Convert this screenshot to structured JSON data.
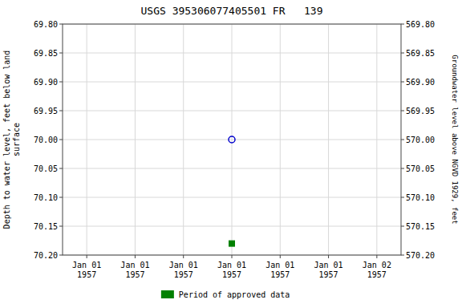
{
  "chart_data": {
    "type": "scatter",
    "title": "USGS 395306077405501 FR   139",
    "y_label": "Depth to water level, feet below land\nsurface",
    "y2_label": "Groundwater level above NGVD 1929, feet",
    "categories": [
      "Jan 01\n1957",
      "Jan 01\n1957",
      "Jan 01\n1957",
      "Jan 01\n1957",
      "Jan 01\n1957",
      "Jan 01\n1957",
      "Jan 02\n1957"
    ],
    "series": [
      {
        "color": "#0000cc",
        "marker": "circle-open",
        "line_style": "none",
        "values": [
          null,
          null,
          null,
          70.0,
          null,
          null,
          null
        ]
      },
      {
        "name": "Period of approved data",
        "color": "#008000",
        "marker": "square",
        "line_style": "none",
        "values": [
          null,
          null,
          null,
          70.18,
          null,
          null,
          null
        ]
      }
    ],
    "ylim": [
      70.2,
      69.8
    ],
    "yticks": [
      {
        "value": 69.8,
        "label": "69.80"
      },
      {
        "value": 69.85,
        "label": "69.85"
      },
      {
        "value": 69.9,
        "label": "69.90"
      },
      {
        "value": 69.95,
        "label": "69.95"
      },
      {
        "value": 70.0,
        "label": "70.00"
      },
      {
        "value": 70.05,
        "label": "70.05"
      },
      {
        "value": 70.1,
        "label": "70.10"
      },
      {
        "value": 70.15,
        "label": "70.15"
      },
      {
        "value": 70.2,
        "label": "70.20"
      }
    ],
    "y2lim": [
      570.2,
      569.8
    ],
    "y2ticks": [
      {
        "value": 570.2,
        "label": "570.20"
      },
      {
        "value": 570.15,
        "label": "570.15"
      },
      {
        "value": 570.1,
        "label": "570.10"
      },
      {
        "value": 570.05,
        "label": "570.05"
      },
      {
        "value": 570.0,
        "label": "570.00"
      },
      {
        "value": 569.95,
        "label": "569.95"
      },
      {
        "value": 569.9,
        "label": "569.90"
      },
      {
        "value": 569.85,
        "label": "569.85"
      },
      {
        "value": 569.8,
        "label": "569.80"
      }
    ],
    "grid": true,
    "legend": "bottom"
  }
}
